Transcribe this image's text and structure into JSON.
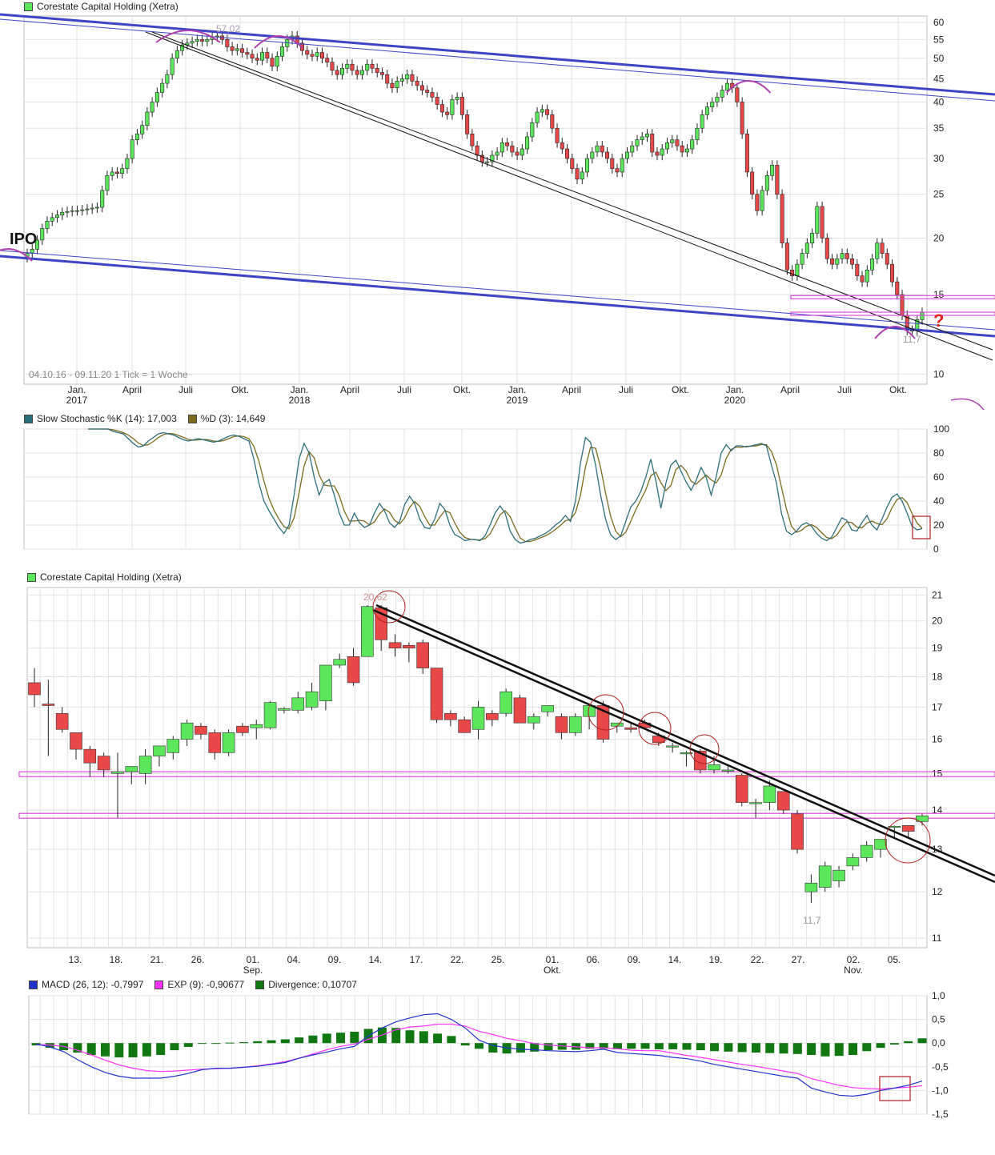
{
  "colors": {
    "up": "#5be65b",
    "down": "#e84848",
    "grid": "#e2e2e2",
    "channel": "#3d45c4",
    "magenta": "#d94bd9",
    "arc": "#b040b0",
    "stoch_k": "#2a6f7a",
    "stoch_d": "#7a6a1a",
    "macd": "#2233cc",
    "exp": "#ff33ff",
    "div": "#117711"
  },
  "chart_data": [
    {
      "id": "weekly",
      "type": "candlestick",
      "title": "Corestate Capital Holding (Xetra)",
      "ylim": [
        9.5,
        62
      ],
      "log_scale": true,
      "y_ticks": [
        10,
        15,
        20,
        25,
        30,
        35,
        40,
        45,
        50,
        55,
        60
      ],
      "x_labels": [
        "Jan.",
        "April",
        "Juli",
        "Okt.",
        "Jan.",
        "April",
        "Juli",
        "Okt.",
        "Jan.",
        "April",
        "Juli",
        "Okt.",
        "Jan.",
        "April",
        "Juli",
        "Okt."
      ],
      "x_years": [
        "2017",
        "",
        "",
        "",
        "2018",
        "",
        "",
        "",
        "2019",
        "",
        "",
        "",
        "2020",
        "",
        "",
        ""
      ],
      "info": "04.10.16 - 09.11.20   1 Tick = 1 Woche",
      "annotations": {
        "ipo": "IPO",
        "high": "57,02",
        "low": "11,7",
        "question": "?"
      },
      "weekly_close": [
        18.5,
        18.9,
        19.8,
        21.0,
        21.8,
        22.2,
        22.5,
        22.8,
        22.9,
        23.0,
        23.0,
        23.1,
        23.2,
        23.3,
        23.4,
        25.5,
        27.5,
        28.0,
        27.8,
        28.5,
        30.0,
        33.0,
        34.0,
        35.5,
        38.0,
        40.0,
        42.0,
        44.0,
        46.0,
        50.0,
        52.0,
        53.5,
        54.0,
        54.5,
        55.0,
        54.5,
        55.0,
        55.8,
        56.0,
        55.0,
        53.0,
        52.0,
        52.5,
        51.5,
        51.0,
        50.0,
        49.5,
        51.5,
        50.0,
        48.0,
        50.5,
        53.0,
        55.0,
        56.0,
        54.0,
        52.0,
        51.0,
        50.5,
        51.5,
        50.0,
        49.0,
        47.0,
        46.0,
        47.5,
        48.5,
        47.0,
        46.0,
        47.0,
        48.5,
        47.5,
        46.5,
        46.0,
        44.0,
        43.0,
        44.5,
        45.0,
        46.0,
        44.5,
        43.5,
        42.5,
        42.0,
        41.0,
        39.5,
        38.0,
        37.5,
        40.5,
        41.0,
        37.5,
        34.0,
        32.0,
        30.5,
        29.5,
        29.5,
        30.5,
        31.0,
        32.5,
        32.0,
        31.0,
        30.5,
        31.5,
        33.5,
        36.0,
        38.0,
        38.5,
        37.5,
        35.0,
        32.5,
        31.5,
        30.0,
        28.5,
        27.0,
        28.0,
        30.0,
        31.0,
        32.0,
        31.0,
        30.0,
        28.5,
        28.0,
        30.0,
        31.0,
        32.0,
        33.0,
        33.5,
        34.0,
        31.0,
        30.5,
        31.5,
        32.5,
        33.0,
        32.0,
        31.0,
        31.5,
        33.0,
        35.0,
        37.5,
        39.0,
        40.0,
        41.0,
        42.5,
        44.0,
        43.0,
        40.0,
        34.0,
        28.0,
        25.0,
        23.0,
        25.5,
        27.5,
        29.0,
        25.0,
        19.5,
        17.0,
        16.5,
        17.5,
        18.5,
        19.5,
        20.5,
        23.5,
        20.0,
        18.0,
        17.5,
        18.0,
        18.5,
        18.0,
        17.5,
        16.5,
        16.0,
        17.0,
        18.0,
        19.5,
        18.5,
        17.5,
        16.0,
        15.0,
        13.5,
        12.5,
        12.5,
        13.2,
        13.7
      ],
      "magenta_levels": [
        14.8,
        13.6
      ]
    },
    {
      "id": "stoch",
      "type": "line",
      "ylim": [
        0,
        100
      ],
      "y_ticks": [
        0,
        20,
        40,
        60,
        80,
        100
      ],
      "series": [
        {
          "name": "Slow Stochastic %K (14): 17,003",
          "color_key": "stoch_k"
        },
        {
          "name": "%D (3): 14,649",
          "color_key": "stoch_d"
        }
      ],
      "k_values": [
        100,
        100,
        100,
        100,
        100,
        98,
        97,
        96,
        92,
        88,
        85,
        86,
        90,
        93,
        96,
        97,
        96,
        95,
        93,
        91,
        90,
        91,
        92,
        91,
        90,
        89,
        90,
        92,
        94,
        95,
        94,
        92,
        90,
        75,
        55,
        40,
        32,
        25,
        18,
        13,
        20,
        45,
        75,
        88,
        80,
        60,
        45,
        55,
        58,
        45,
        30,
        20,
        20,
        30,
        22,
        18,
        20,
        30,
        38,
        32,
        22,
        18,
        23,
        37,
        44,
        38,
        25,
        18,
        17,
        25,
        38,
        33,
        20,
        12,
        10,
        7,
        8,
        8,
        7,
        11,
        20,
        30,
        36,
        30,
        15,
        8,
        5,
        6,
        8,
        9,
        11,
        13,
        16,
        20,
        23,
        28,
        23,
        40,
        72,
        93,
        89,
        70,
        45,
        25,
        12,
        8,
        11,
        23,
        35,
        40,
        48,
        60,
        75,
        57,
        34,
        55,
        70,
        74,
        65,
        56,
        49,
        57,
        68,
        60,
        45,
        60,
        80,
        87,
        82,
        86,
        86,
        85,
        86,
        87,
        88,
        86,
        70,
        55,
        30,
        15,
        12,
        15,
        20,
        22,
        19,
        13,
        9,
        7,
        10,
        18,
        26,
        24,
        16,
        15,
        22,
        28,
        20,
        16,
        25,
        35,
        43,
        46,
        40,
        30,
        19,
        16,
        17
      ]
    },
    {
      "id": "daily",
      "type": "candlestick",
      "title": "Corestate Capital Holding (Xetra)",
      "ylim": [
        10.8,
        21.3
      ],
      "log_scale": true,
      "y_ticks": [
        11,
        12,
        13,
        14,
        15,
        16,
        17,
        18,
        19,
        20,
        21
      ],
      "x_labels": [
        "13.",
        "18.",
        "21.",
        "26.",
        "01.",
        "04.",
        "09.",
        "14.",
        "17.",
        "22.",
        "25.",
        "01.",
        "06.",
        "09.",
        "14.",
        "19.",
        "22.",
        "27.",
        "02.",
        "05."
      ],
      "x_months": [
        "",
        "",
        "",
        "",
        "Sep.",
        "",
        "",
        "",
        "",
        "",
        "",
        "Okt.",
        "",
        "",
        "",
        "",
        "",
        "",
        "Nov.",
        ""
      ],
      "annotations": {
        "high": "20,62",
        "low": "11,7"
      },
      "candles": [
        [
          17.8,
          18.3,
          17.0,
          17.4
        ],
        [
          17.1,
          17.9,
          15.5,
          17.05
        ],
        [
          16.8,
          17.0,
          16.2,
          16.3
        ],
        [
          16.2,
          16.2,
          15.4,
          15.7
        ],
        [
          15.7,
          15.8,
          14.9,
          15.3
        ],
        [
          15.5,
          15.6,
          14.9,
          15.1
        ],
        [
          15.0,
          15.6,
          13.8,
          15.05
        ],
        [
          15.05,
          15.2,
          14.7,
          15.2
        ],
        [
          15.0,
          15.7,
          14.7,
          15.5
        ],
        [
          15.5,
          15.8,
          15.2,
          15.8
        ],
        [
          15.6,
          16.1,
          15.4,
          16.0
        ],
        [
          16.0,
          16.6,
          15.8,
          16.5
        ],
        [
          16.4,
          16.5,
          16.0,
          16.15
        ],
        [
          16.2,
          16.3,
          15.4,
          15.6
        ],
        [
          15.6,
          16.3,
          15.5,
          16.2
        ],
        [
          16.4,
          16.5,
          16.1,
          16.2
        ],
        [
          16.35,
          16.6,
          16.0,
          16.45
        ],
        [
          16.35,
          17.2,
          16.3,
          17.15
        ],
        [
          16.9,
          17.0,
          16.8,
          16.95
        ],
        [
          16.9,
          17.5,
          16.8,
          17.3
        ],
        [
          17.0,
          17.8,
          16.9,
          17.5
        ],
        [
          17.2,
          18.4,
          16.9,
          18.4
        ],
        [
          18.4,
          18.8,
          18.3,
          18.6
        ],
        [
          18.7,
          19.0,
          17.7,
          17.8
        ],
        [
          18.7,
          20.6,
          18.7,
          20.55
        ],
        [
          20.5,
          20.6,
          18.9,
          19.3
        ],
        [
          19.2,
          19.5,
          18.7,
          19.0
        ],
        [
          19.1,
          19.2,
          18.5,
          19.0
        ],
        [
          19.2,
          19.3,
          18.1,
          18.3
        ],
        [
          18.3,
          18.3,
          16.5,
          16.6
        ],
        [
          16.8,
          16.9,
          16.4,
          16.6
        ],
        [
          16.6,
          16.7,
          16.2,
          16.2
        ],
        [
          16.3,
          17.2,
          16.0,
          17.0
        ],
        [
          16.8,
          16.9,
          16.4,
          16.6
        ],
        [
          16.8,
          17.6,
          16.7,
          17.5
        ],
        [
          17.3,
          17.4,
          16.5,
          16.5
        ],
        [
          16.5,
          16.8,
          16.3,
          16.7
        ],
        [
          16.85,
          17.0,
          16.7,
          17.05
        ],
        [
          16.7,
          16.8,
          16.0,
          16.2
        ],
        [
          16.2,
          16.8,
          16.1,
          16.7
        ],
        [
          16.7,
          17.1,
          16.3,
          17.05
        ],
        [
          17.05,
          17.2,
          15.9,
          16.0
        ],
        [
          16.4,
          16.5,
          16.2,
          16.5
        ],
        [
          16.35,
          16.5,
          16.2,
          16.3
        ],
        [
          16.5,
          16.6,
          16.3,
          16.35
        ],
        [
          16.1,
          16.2,
          15.8,
          15.9
        ],
        [
          15.8,
          15.9,
          15.6,
          15.8
        ],
        [
          15.6,
          15.65,
          15.2,
          15.6
        ],
        [
          15.65,
          15.7,
          15.0,
          15.1
        ],
        [
          15.1,
          15.5,
          15.0,
          15.25
        ],
        [
          15.1,
          15.2,
          15.0,
          15.1
        ],
        [
          14.95,
          15.0,
          14.1,
          14.2
        ],
        [
          14.2,
          14.3,
          13.8,
          14.2
        ],
        [
          14.2,
          14.8,
          14.0,
          14.65
        ],
        [
          14.5,
          14.5,
          13.9,
          14.0
        ],
        [
          13.9,
          14.0,
          12.9,
          13.0
        ],
        [
          12.0,
          12.4,
          11.75,
          12.2
        ],
        [
          12.1,
          12.7,
          12.0,
          12.6
        ],
        [
          12.25,
          12.6,
          12.1,
          12.5
        ],
        [
          12.6,
          12.9,
          12.5,
          12.8
        ],
        [
          12.8,
          13.2,
          12.7,
          13.1
        ],
        [
          13.0,
          13.2,
          12.8,
          13.25
        ],
        [
          13.55,
          13.6,
          13.3,
          13.58
        ],
        [
          13.6,
          13.6,
          13.3,
          13.45
        ],
        [
          13.7,
          13.9,
          13.6,
          13.85
        ]
      ],
      "magenta_levels": [
        14.98,
        13.85
      ]
    },
    {
      "id": "macd",
      "type": "line",
      "ylim": [
        -1.5,
        1.0
      ],
      "y_ticks": [
        1.0,
        0.5,
        0.0,
        -0.5,
        -1.0,
        -1.5
      ],
      "y_tick_labels": [
        "1,0",
        "0,5",
        "0,0",
        "-0,5",
        "-1,0",
        "-1,5"
      ],
      "series": [
        {
          "name": "MACD (26, 12): -0,7997",
          "color_key": "macd"
        },
        {
          "name": "EXP (9): -0,90677",
          "color_key": "exp"
        },
        {
          "name": "Divergence: 0,10707",
          "color_key": "div"
        }
      ],
      "macd_values": [
        -0.02,
        -0.08,
        -0.18,
        -0.35,
        -0.5,
        -0.62,
        -0.7,
        -0.74,
        -0.74,
        -0.74,
        -0.7,
        -0.64,
        -0.56,
        -0.53,
        -0.53,
        -0.51,
        -0.49,
        -0.45,
        -0.41,
        -0.32,
        -0.25,
        -0.19,
        -0.12,
        -0.07,
        0.15,
        0.32,
        0.45,
        0.53,
        0.6,
        0.62,
        0.5,
        0.32,
        0.06,
        -0.05,
        -0.1,
        -0.13,
        -0.14,
        -0.16,
        -0.17,
        -0.18,
        -0.16,
        -0.13,
        -0.2,
        -0.22,
        -0.24,
        -0.26,
        -0.3,
        -0.33,
        -0.38,
        -0.45,
        -0.5,
        -0.55,
        -0.6,
        -0.65,
        -0.7,
        -0.74,
        -0.95,
        -1.03,
        -1.1,
        -1.12,
        -1.08,
        -1.0,
        -0.95,
        -0.89,
        -0.8
      ],
      "exp_values": [
        -0.03,
        -0.04,
        -0.07,
        -0.15,
        -0.25,
        -0.36,
        -0.46,
        -0.53,
        -0.58,
        -0.6,
        -0.59,
        -0.57,
        -0.55,
        -0.54,
        -0.53,
        -0.51,
        -0.48,
        -0.44,
        -0.39,
        -0.32,
        -0.23,
        -0.14,
        -0.07,
        -0.02,
        0.08,
        0.17,
        0.28,
        0.34,
        0.36,
        0.4,
        0.4,
        0.36,
        0.25,
        0.18,
        0.1,
        0.05,
        -0.01,
        -0.04,
        -0.06,
        -0.08,
        -0.1,
        -0.1,
        -0.12,
        -0.15,
        -0.16,
        -0.16,
        -0.21,
        -0.26,
        -0.3,
        -0.35,
        -0.4,
        -0.45,
        -0.49,
        -0.54,
        -0.59,
        -0.64,
        -0.75,
        -0.82,
        -0.89,
        -0.94,
        -0.96,
        -0.97,
        -0.95,
        -0.93,
        -0.9
      ],
      "div_values": [
        -0.05,
        -0.1,
        -0.15,
        -0.2,
        -0.25,
        -0.28,
        -0.3,
        -0.3,
        -0.28,
        -0.25,
        -0.15,
        -0.08,
        -0.01,
        0.0,
        0.01,
        0.02,
        0.04,
        0.06,
        0.08,
        0.12,
        0.16,
        0.2,
        0.22,
        0.24,
        0.3,
        0.33,
        0.32,
        0.27,
        0.25,
        0.2,
        0.15,
        -0.05,
        -0.12,
        -0.2,
        -0.22,
        -0.2,
        -0.18,
        -0.15,
        -0.14,
        -0.14,
        -0.12,
        -0.12,
        -0.13,
        -0.12,
        -0.12,
        -0.13,
        -0.13,
        -0.14,
        -0.15,
        -0.17,
        -0.18,
        -0.19,
        -0.2,
        -0.21,
        -0.22,
        -0.23,
        -0.25,
        -0.28,
        -0.27,
        -0.25,
        -0.17,
        -0.1,
        -0.03,
        0.04,
        0.1
      ]
    }
  ]
}
